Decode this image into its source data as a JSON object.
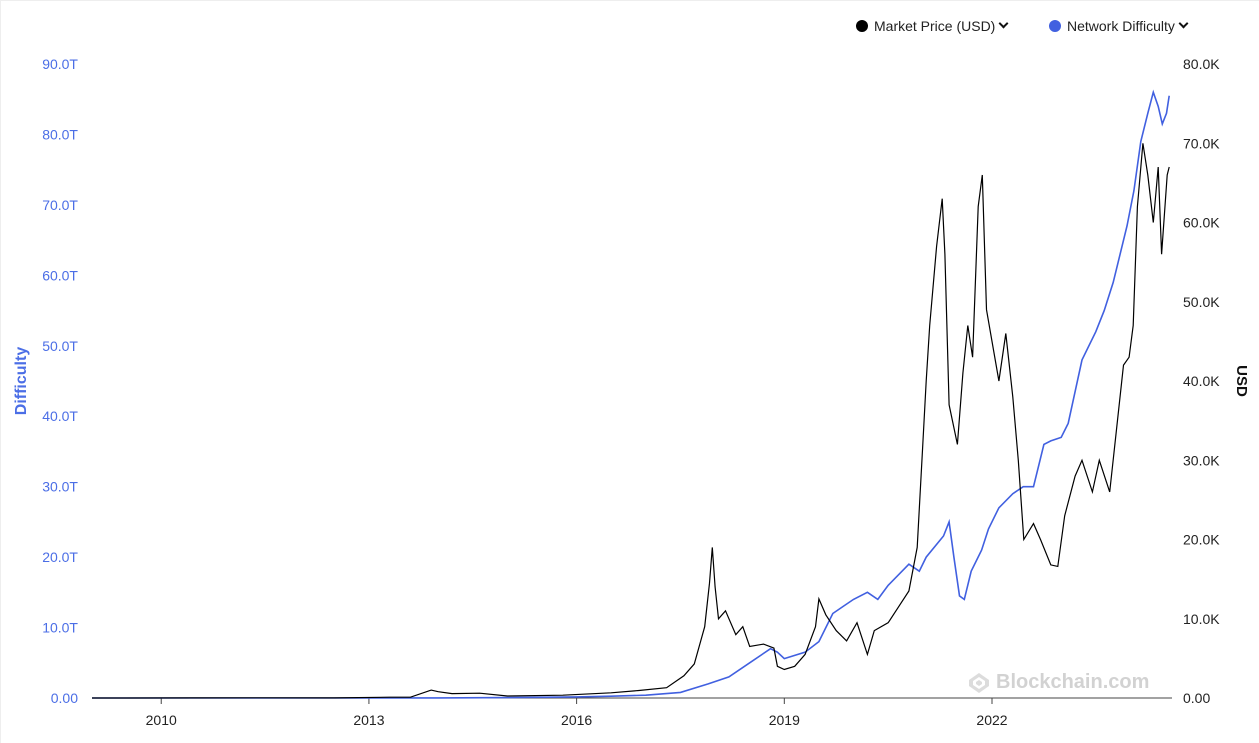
{
  "legend": {
    "price_label": "Market Price (USD)",
    "difficulty_label": "Network Difficulty"
  },
  "watermark": "Blockchain.com",
  "colors": {
    "price": "#000000",
    "difficulty": "#4160e0",
    "left_axis": "#4b6ee6"
  },
  "icons": {
    "legend_toggle": "chevron-down-icon",
    "watermark": "blockchain-logo-icon"
  },
  "chart_data": {
    "type": "line",
    "x_axis": {
      "ticks": [
        "2010",
        "2013",
        "2016",
        "2019",
        "2022"
      ],
      "range": [
        "2009-01",
        "2024-06"
      ]
    },
    "y_left": {
      "label": "Difficulty",
      "ticks": [
        "0.00",
        "10.0T",
        "20.0T",
        "30.0T",
        "40.0T",
        "50.0T",
        "60.0T",
        "70.0T",
        "80.0T",
        "90.0T"
      ],
      "range": [
        0,
        90
      ]
    },
    "y_right": {
      "label": "USD",
      "ticks": [
        "0.00",
        "10.0K",
        "20.0K",
        "30.0K",
        "40.0K",
        "50.0K",
        "60.0K",
        "70.0K",
        "80.0K"
      ],
      "range": [
        0,
        80
      ]
    },
    "series": [
      {
        "name": "Market Price (USD)",
        "axis": "right",
        "unit": "K USD",
        "points": [
          [
            "2009.0",
            0
          ],
          [
            "2010.5",
            0.01
          ],
          [
            "2011.4",
            0.02
          ],
          [
            "2012.5",
            0.01
          ],
          [
            "2013.3",
            0.1
          ],
          [
            "2013.6",
            0.1
          ],
          [
            "2013.9",
            1.0
          ],
          [
            "2014.0",
            0.8
          ],
          [
            "2014.2",
            0.55
          ],
          [
            "2014.6",
            0.6
          ],
          [
            "2015.0",
            0.25
          ],
          [
            "2015.8",
            0.35
          ],
          [
            "2016.5",
            0.65
          ],
          [
            "2016.9",
            0.95
          ],
          [
            "2017.3",
            1.3
          ],
          [
            "2017.55",
            2.8
          ],
          [
            "2017.7",
            4.3
          ],
          [
            "2017.85",
            9.0
          ],
          [
            "2017.92",
            14.5
          ],
          [
            "2017.96",
            19.0
          ],
          [
            "2018.0",
            14.0
          ],
          [
            "2018.05",
            10.0
          ],
          [
            "2018.15",
            11.0
          ],
          [
            "2018.3",
            8.0
          ],
          [
            "2018.4",
            9.0
          ],
          [
            "2018.5",
            6.5
          ],
          [
            "2018.7",
            6.8
          ],
          [
            "2018.85",
            6.3
          ],
          [
            "2018.9",
            4.0
          ],
          [
            "2019.0",
            3.6
          ],
          [
            "2019.15",
            4.0
          ],
          [
            "2019.3",
            5.5
          ],
          [
            "2019.45",
            9.0
          ],
          [
            "2019.5",
            12.5
          ],
          [
            "2019.6",
            10.5
          ],
          [
            "2019.75",
            8.5
          ],
          [
            "2019.9",
            7.2
          ],
          [
            "2020.05",
            9.5
          ],
          [
            "2020.2",
            5.5
          ],
          [
            "2020.3",
            8.5
          ],
          [
            "2020.5",
            9.5
          ],
          [
            "2020.65",
            11.5
          ],
          [
            "2020.8",
            13.5
          ],
          [
            "2020.92",
            19.0
          ],
          [
            "2021.0",
            32.0
          ],
          [
            "2021.05",
            40.0
          ],
          [
            "2021.1",
            47.0
          ],
          [
            "2021.2",
            57.0
          ],
          [
            "2021.28",
            63.0
          ],
          [
            "2021.32",
            56.0
          ],
          [
            "2021.38",
            37.0
          ],
          [
            "2021.5",
            32.0
          ],
          [
            "2021.58",
            41.0
          ],
          [
            "2021.65",
            47.0
          ],
          [
            "2021.72",
            43.0
          ],
          [
            "2021.8",
            62.0
          ],
          [
            "2021.86",
            66.0
          ],
          [
            "2021.92",
            49.0
          ],
          [
            "2022.0",
            45.0
          ],
          [
            "2022.1",
            40.0
          ],
          [
            "2022.2",
            46.0
          ],
          [
            "2022.3",
            38.0
          ],
          [
            "2022.38",
            30.0
          ],
          [
            "2022.46",
            20.0
          ],
          [
            "2022.6",
            22.0
          ],
          [
            "2022.7",
            20.0
          ],
          [
            "2022.85",
            16.8
          ],
          [
            "2022.95",
            16.6
          ],
          [
            "2023.05",
            23.0
          ],
          [
            "2023.2",
            28.0
          ],
          [
            "2023.3",
            30.0
          ],
          [
            "2023.45",
            26.0
          ],
          [
            "2023.55",
            30.0
          ],
          [
            "2023.7",
            26.0
          ],
          [
            "2023.8",
            34.0
          ],
          [
            "2023.9",
            42.0
          ],
          [
            "2023.98",
            43.0
          ],
          [
            "2024.04",
            47.0
          ],
          [
            "2024.1",
            62.0
          ],
          [
            "2024.18",
            70.0
          ],
          [
            "2024.25",
            66.0
          ],
          [
            "2024.33",
            60.0
          ],
          [
            "2024.4",
            67.0
          ],
          [
            "2024.45",
            56.0
          ],
          [
            "2024.53",
            66.0
          ],
          [
            "2024.56",
            67.0
          ]
        ]
      },
      {
        "name": "Network Difficulty",
        "axis": "left",
        "unit": "T",
        "points": [
          [
            "2009.0",
            0
          ],
          [
            "2013.0",
            0
          ],
          [
            "2014.0",
            0.01
          ],
          [
            "2015.0",
            0.05
          ],
          [
            "2016.0",
            0.15
          ],
          [
            "2016.5",
            0.25
          ],
          [
            "2017.0",
            0.4
          ],
          [
            "2017.5",
            0.8
          ],
          [
            "2017.9",
            2.0
          ],
          [
            "2018.2",
            3.0
          ],
          [
            "2018.5",
            5.0
          ],
          [
            "2018.8",
            7.0
          ],
          [
            "2018.9",
            6.5
          ],
          [
            "2019.0",
            5.6
          ],
          [
            "2019.3",
            6.5
          ],
          [
            "2019.5",
            8.0
          ],
          [
            "2019.7",
            12.0
          ],
          [
            "2019.85",
            13.0
          ],
          [
            "2020.0",
            14.0
          ],
          [
            "2020.2",
            15.0
          ],
          [
            "2020.35",
            14.0
          ],
          [
            "2020.5",
            16.0
          ],
          [
            "2020.8",
            19.0
          ],
          [
            "2020.95",
            18.0
          ],
          [
            "2021.05",
            20.0
          ],
          [
            "2021.3",
            23.0
          ],
          [
            "2021.38",
            25.0
          ],
          [
            "2021.45",
            20.0
          ],
          [
            "2021.53",
            14.5
          ],
          [
            "2021.6",
            14.0
          ],
          [
            "2021.7",
            18.0
          ],
          [
            "2021.85",
            21.0
          ],
          [
            "2021.95",
            24.0
          ],
          [
            "2022.1",
            27.0
          ],
          [
            "2022.3",
            29.0
          ],
          [
            "2022.45",
            30.0
          ],
          [
            "2022.6",
            30.0
          ],
          [
            "2022.75",
            36.0
          ],
          [
            "2022.85",
            36.5
          ],
          [
            "2023.0",
            37.0
          ],
          [
            "2023.1",
            39.0
          ],
          [
            "2023.3",
            48.0
          ],
          [
            "2023.5",
            52.0
          ],
          [
            "2023.62",
            55.0
          ],
          [
            "2023.75",
            59.0
          ],
          [
            "2023.85",
            63.0
          ],
          [
            "2023.95",
            67.0
          ],
          [
            "2024.05",
            72.0
          ],
          [
            "2024.15",
            79.0
          ],
          [
            "2024.25",
            83.0
          ],
          [
            "2024.33",
            86.0
          ],
          [
            "2024.4",
            84.0
          ],
          [
            "2024.46",
            81.5
          ],
          [
            "2024.52",
            83.0
          ],
          [
            "2024.56",
            85.5
          ]
        ]
      }
    ],
    "grid": false,
    "legend_placement": "top-right"
  }
}
